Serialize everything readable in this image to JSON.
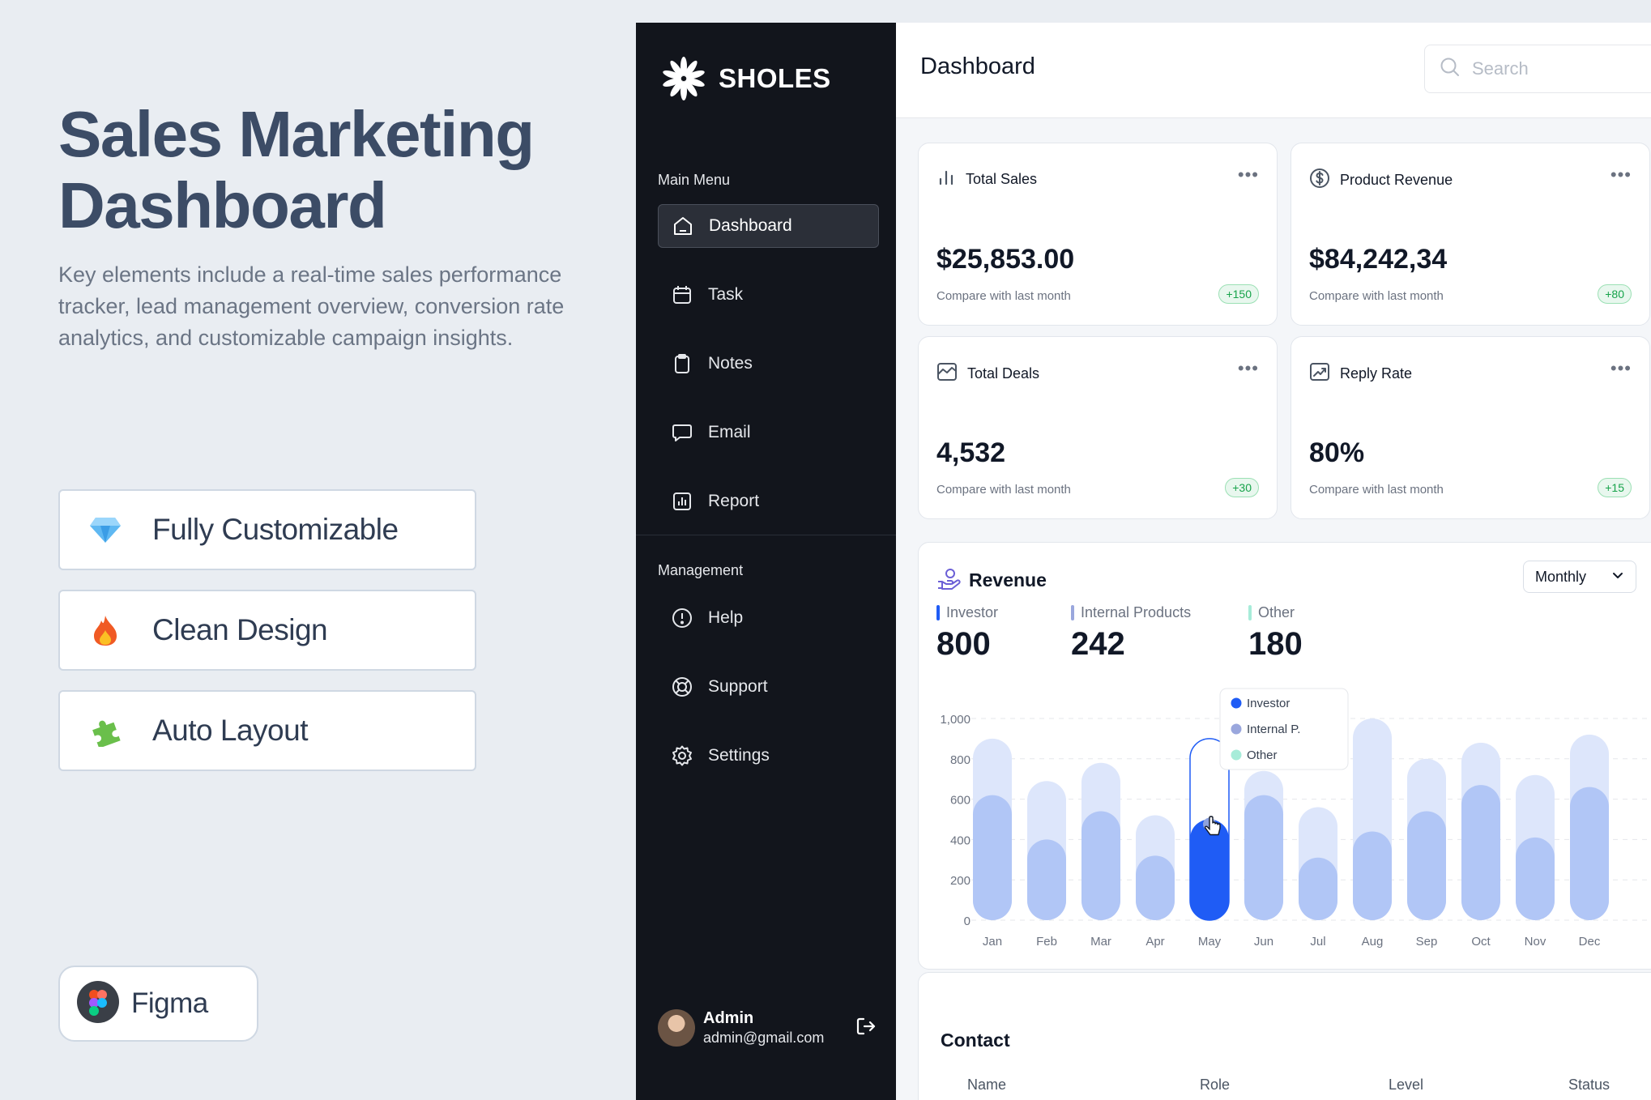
{
  "promo": {
    "title_line1": "Sales Marketing",
    "title_line2": "Dashboard",
    "description": "Key elements include a real-time sales performance tracker, lead management overview, conversion rate analytics, and customizable campaign insights.",
    "features": [
      {
        "label": "Fully Customizable",
        "icon": "diamond-icon"
      },
      {
        "label": "Clean Design",
        "icon": "fire-icon"
      },
      {
        "label": "Auto Layout",
        "icon": "puzzle-icon"
      }
    ],
    "tool": {
      "label": "Figma",
      "icon": "figma-logo"
    }
  },
  "sidebar": {
    "brand": "SHOLES",
    "main_menu_label": "Main Menu",
    "main_menu": [
      {
        "label": "Dashboard",
        "icon": "home-icon",
        "active": true
      },
      {
        "label": "Task",
        "icon": "calendar-icon"
      },
      {
        "label": "Notes",
        "icon": "clipboard-icon"
      },
      {
        "label": "Email",
        "icon": "chat-icon"
      },
      {
        "label": "Report",
        "icon": "chart-icon"
      }
    ],
    "management_label": "Management",
    "management": [
      {
        "label": "Help",
        "icon": "info-icon"
      },
      {
        "label": "Support",
        "icon": "lifebuoy-icon"
      },
      {
        "label": "Settings",
        "icon": "gear-icon"
      }
    ],
    "user": {
      "name": "Admin",
      "email": "admin@gmail.com"
    }
  },
  "header": {
    "title": "Dashboard",
    "search_placeholder": "Search"
  },
  "stats": [
    {
      "title": "Total Sales",
      "value": "$25,853.00",
      "compare": "Compare with last month",
      "badge": "+150",
      "icon": "bar-chart-icon"
    },
    {
      "title": "Product Revenue",
      "value": "$84,242,34",
      "compare": "Compare with last month",
      "badge": "+80",
      "icon": "dollar-icon"
    },
    {
      "title": "Total Deals",
      "value": "4,532",
      "compare": "Compare with last month",
      "badge": "+30",
      "icon": "trend-icon"
    },
    {
      "title": "Reply Rate",
      "value": "80%",
      "compare": "Compare with last month",
      "badge": "+15",
      "icon": "growth-icon"
    }
  ],
  "revenue": {
    "title": "Revenue",
    "period": "Monthly",
    "legend": [
      {
        "name": "Investor",
        "value": "800",
        "color": "#1f5cf5"
      },
      {
        "name": "Internal Products",
        "value": "242",
        "color": "#9aa7dd"
      },
      {
        "name": "Other",
        "value": "180",
        "color": "#a7ecd9"
      }
    ],
    "tooltip": [
      "Investor",
      "Internal  P.",
      "Other"
    ]
  },
  "chart_data": {
    "type": "bar",
    "categories": [
      "Jan",
      "Feb",
      "Mar",
      "Apr",
      "May",
      "Jun",
      "Jul",
      "Aug",
      "Sep",
      "Oct",
      "Nov",
      "Dec"
    ],
    "series": [
      {
        "name": "Investor",
        "values": [
          620,
          400,
          540,
          320,
          500,
          620,
          310,
          440,
          540,
          670,
          410,
          660
        ]
      },
      {
        "name": "Internal Products",
        "values": [
          900,
          690,
          780,
          520,
          900,
          740,
          560,
          1000,
          800,
          880,
          720,
          920
        ]
      }
    ],
    "highlight_index": 4,
    "yticks": [
      "0",
      "200",
      "400",
      "600",
      "800",
      "1,000"
    ],
    "ylim": [
      0,
      1000
    ],
    "grid": true
  },
  "contact": {
    "title": "Contact",
    "columns": [
      "Name",
      "Role",
      "Level",
      "Status"
    ]
  }
}
